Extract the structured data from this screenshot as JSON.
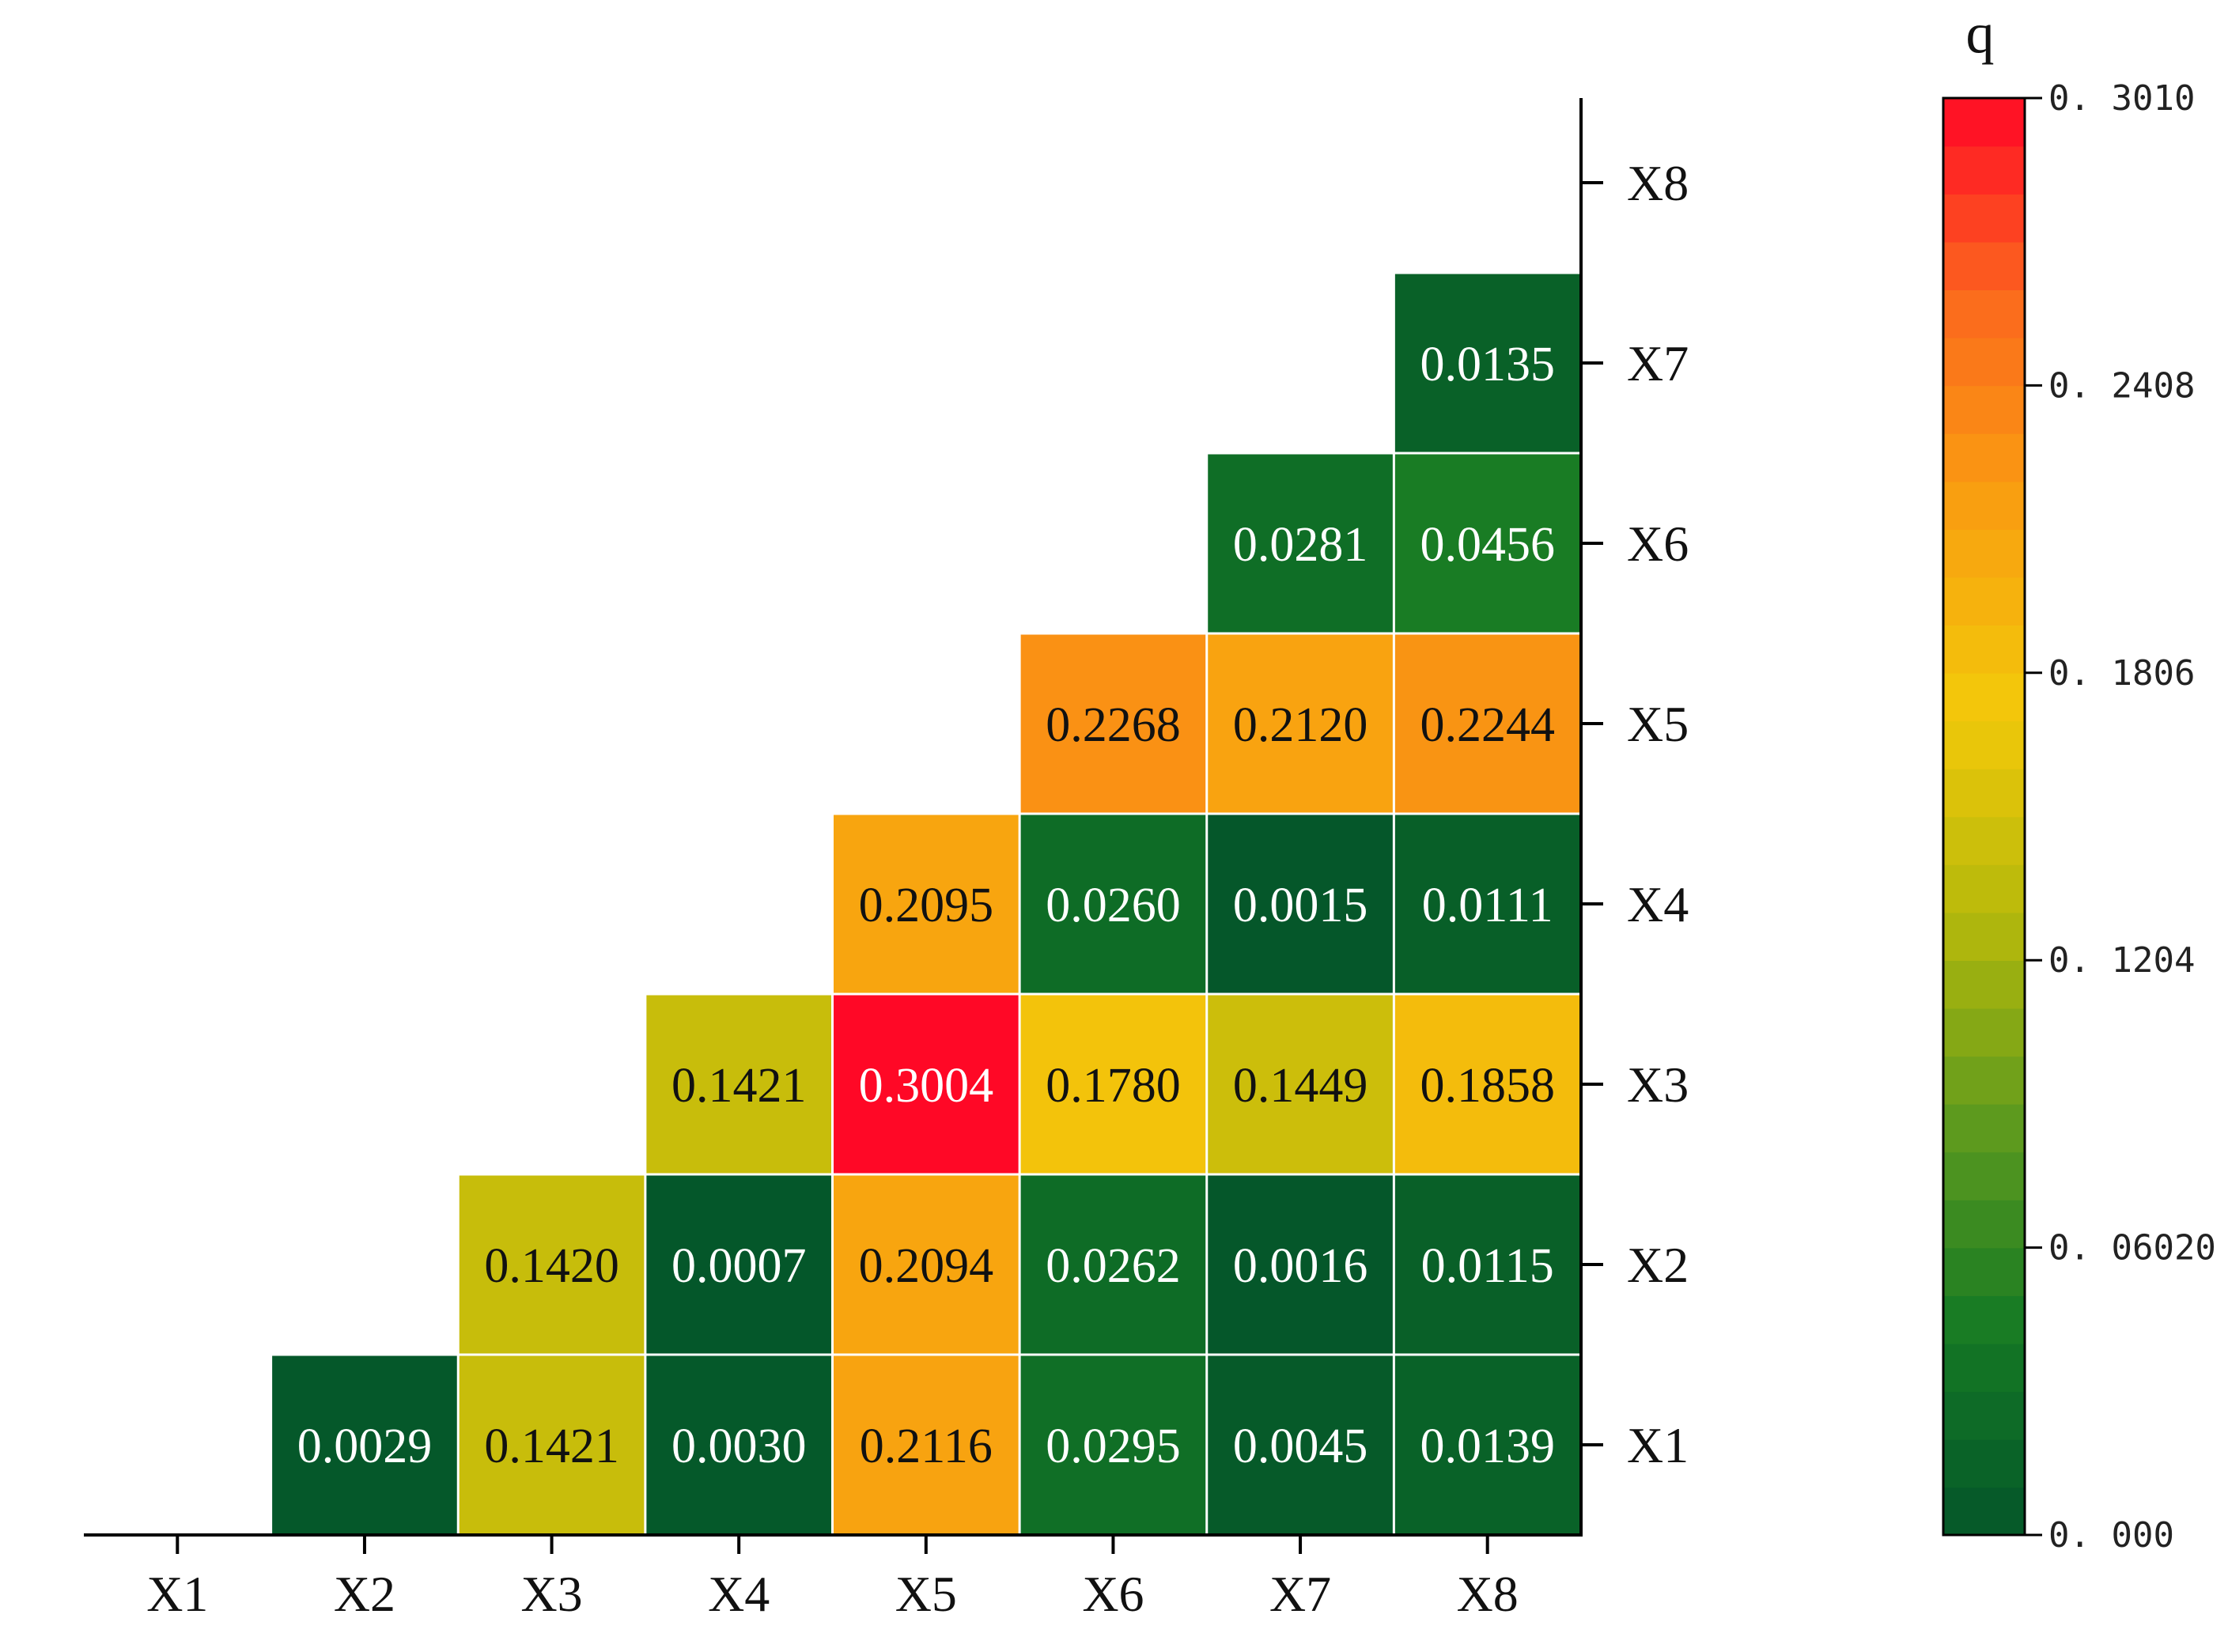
{
  "chart_data": {
    "type": "heatmap",
    "x_labels": [
      "X1",
      "X2",
      "X3",
      "X4",
      "X5",
      "X6",
      "X7",
      "X8"
    ],
    "y_labels": [
      "X1",
      "X2",
      "X3",
      "X4",
      "X5",
      "X6",
      "X7",
      "X8"
    ],
    "cells": [
      {
        "x": "X2",
        "y": "X1",
        "value": 0.0029,
        "label": "0.0029"
      },
      {
        "x": "X3",
        "y": "X1",
        "value": 0.1421,
        "label": "0.1421"
      },
      {
        "x": "X4",
        "y": "X1",
        "value": 0.003,
        "label": "0.0030"
      },
      {
        "x": "X5",
        "y": "X1",
        "value": 0.2116,
        "label": "0.2116"
      },
      {
        "x": "X6",
        "y": "X1",
        "value": 0.0295,
        "label": "0.0295"
      },
      {
        "x": "X7",
        "y": "X1",
        "value": 0.0045,
        "label": "0.0045"
      },
      {
        "x": "X8",
        "y": "X1",
        "value": 0.0139,
        "label": "0.0139"
      },
      {
        "x": "X3",
        "y": "X2",
        "value": 0.142,
        "label": "0.1420"
      },
      {
        "x": "X4",
        "y": "X2",
        "value": 0.0007,
        "label": "0.0007"
      },
      {
        "x": "X5",
        "y": "X2",
        "value": 0.2094,
        "label": "0.2094"
      },
      {
        "x": "X6",
        "y": "X2",
        "value": 0.0262,
        "label": "0.0262"
      },
      {
        "x": "X7",
        "y": "X2",
        "value": 0.0016,
        "label": "0.0016"
      },
      {
        "x": "X8",
        "y": "X2",
        "value": 0.0115,
        "label": "0.0115"
      },
      {
        "x": "X4",
        "y": "X3",
        "value": 0.1421,
        "label": "0.1421"
      },
      {
        "x": "X5",
        "y": "X3",
        "value": 0.3004,
        "label": "0.3004"
      },
      {
        "x": "X6",
        "y": "X3",
        "value": 0.178,
        "label": "0.1780"
      },
      {
        "x": "X7",
        "y": "X3",
        "value": 0.1449,
        "label": "0.1449"
      },
      {
        "x": "X8",
        "y": "X3",
        "value": 0.1858,
        "label": "0.1858"
      },
      {
        "x": "X5",
        "y": "X4",
        "value": 0.2095,
        "label": "0.2095"
      },
      {
        "x": "X6",
        "y": "X4",
        "value": 0.026,
        "label": "0.0260"
      },
      {
        "x": "X7",
        "y": "X4",
        "value": 0.0015,
        "label": "0.0015"
      },
      {
        "x": "X8",
        "y": "X4",
        "value": 0.0111,
        "label": "0.0111"
      },
      {
        "x": "X6",
        "y": "X5",
        "value": 0.2268,
        "label": "0.2268"
      },
      {
        "x": "X7",
        "y": "X5",
        "value": 0.212,
        "label": "0.2120"
      },
      {
        "x": "X8",
        "y": "X5",
        "value": 0.2244,
        "label": "0.2244"
      },
      {
        "x": "X7",
        "y": "X6",
        "value": 0.0281,
        "label": "0.0281"
      },
      {
        "x": "X8",
        "y": "X6",
        "value": 0.0456,
        "label": "0.0456"
      },
      {
        "x": "X8",
        "y": "X7",
        "value": 0.0135,
        "label": "0.0135"
      }
    ],
    "colorbar": {
      "title": "q",
      "min": 0.0,
      "max": 0.301,
      "tick_values": [
        0.301,
        0.2408,
        0.1806,
        0.1204,
        0.0602,
        0.0
      ],
      "tick_labels": [
        "0. 3010",
        "0. 2408",
        "0. 1806",
        "0. 1204",
        "0. 06020",
        "0. 000"
      ],
      "colors": [
        "#04562a",
        "#157a24",
        "#5e9b1e",
        "#b5b80b",
        "#f2c90a",
        "#f9a010",
        "#fb6a1d",
        "#ff0726"
      ]
    },
    "y_axis_position": "right",
    "grid": false,
    "legend": "colorbar-right"
  }
}
